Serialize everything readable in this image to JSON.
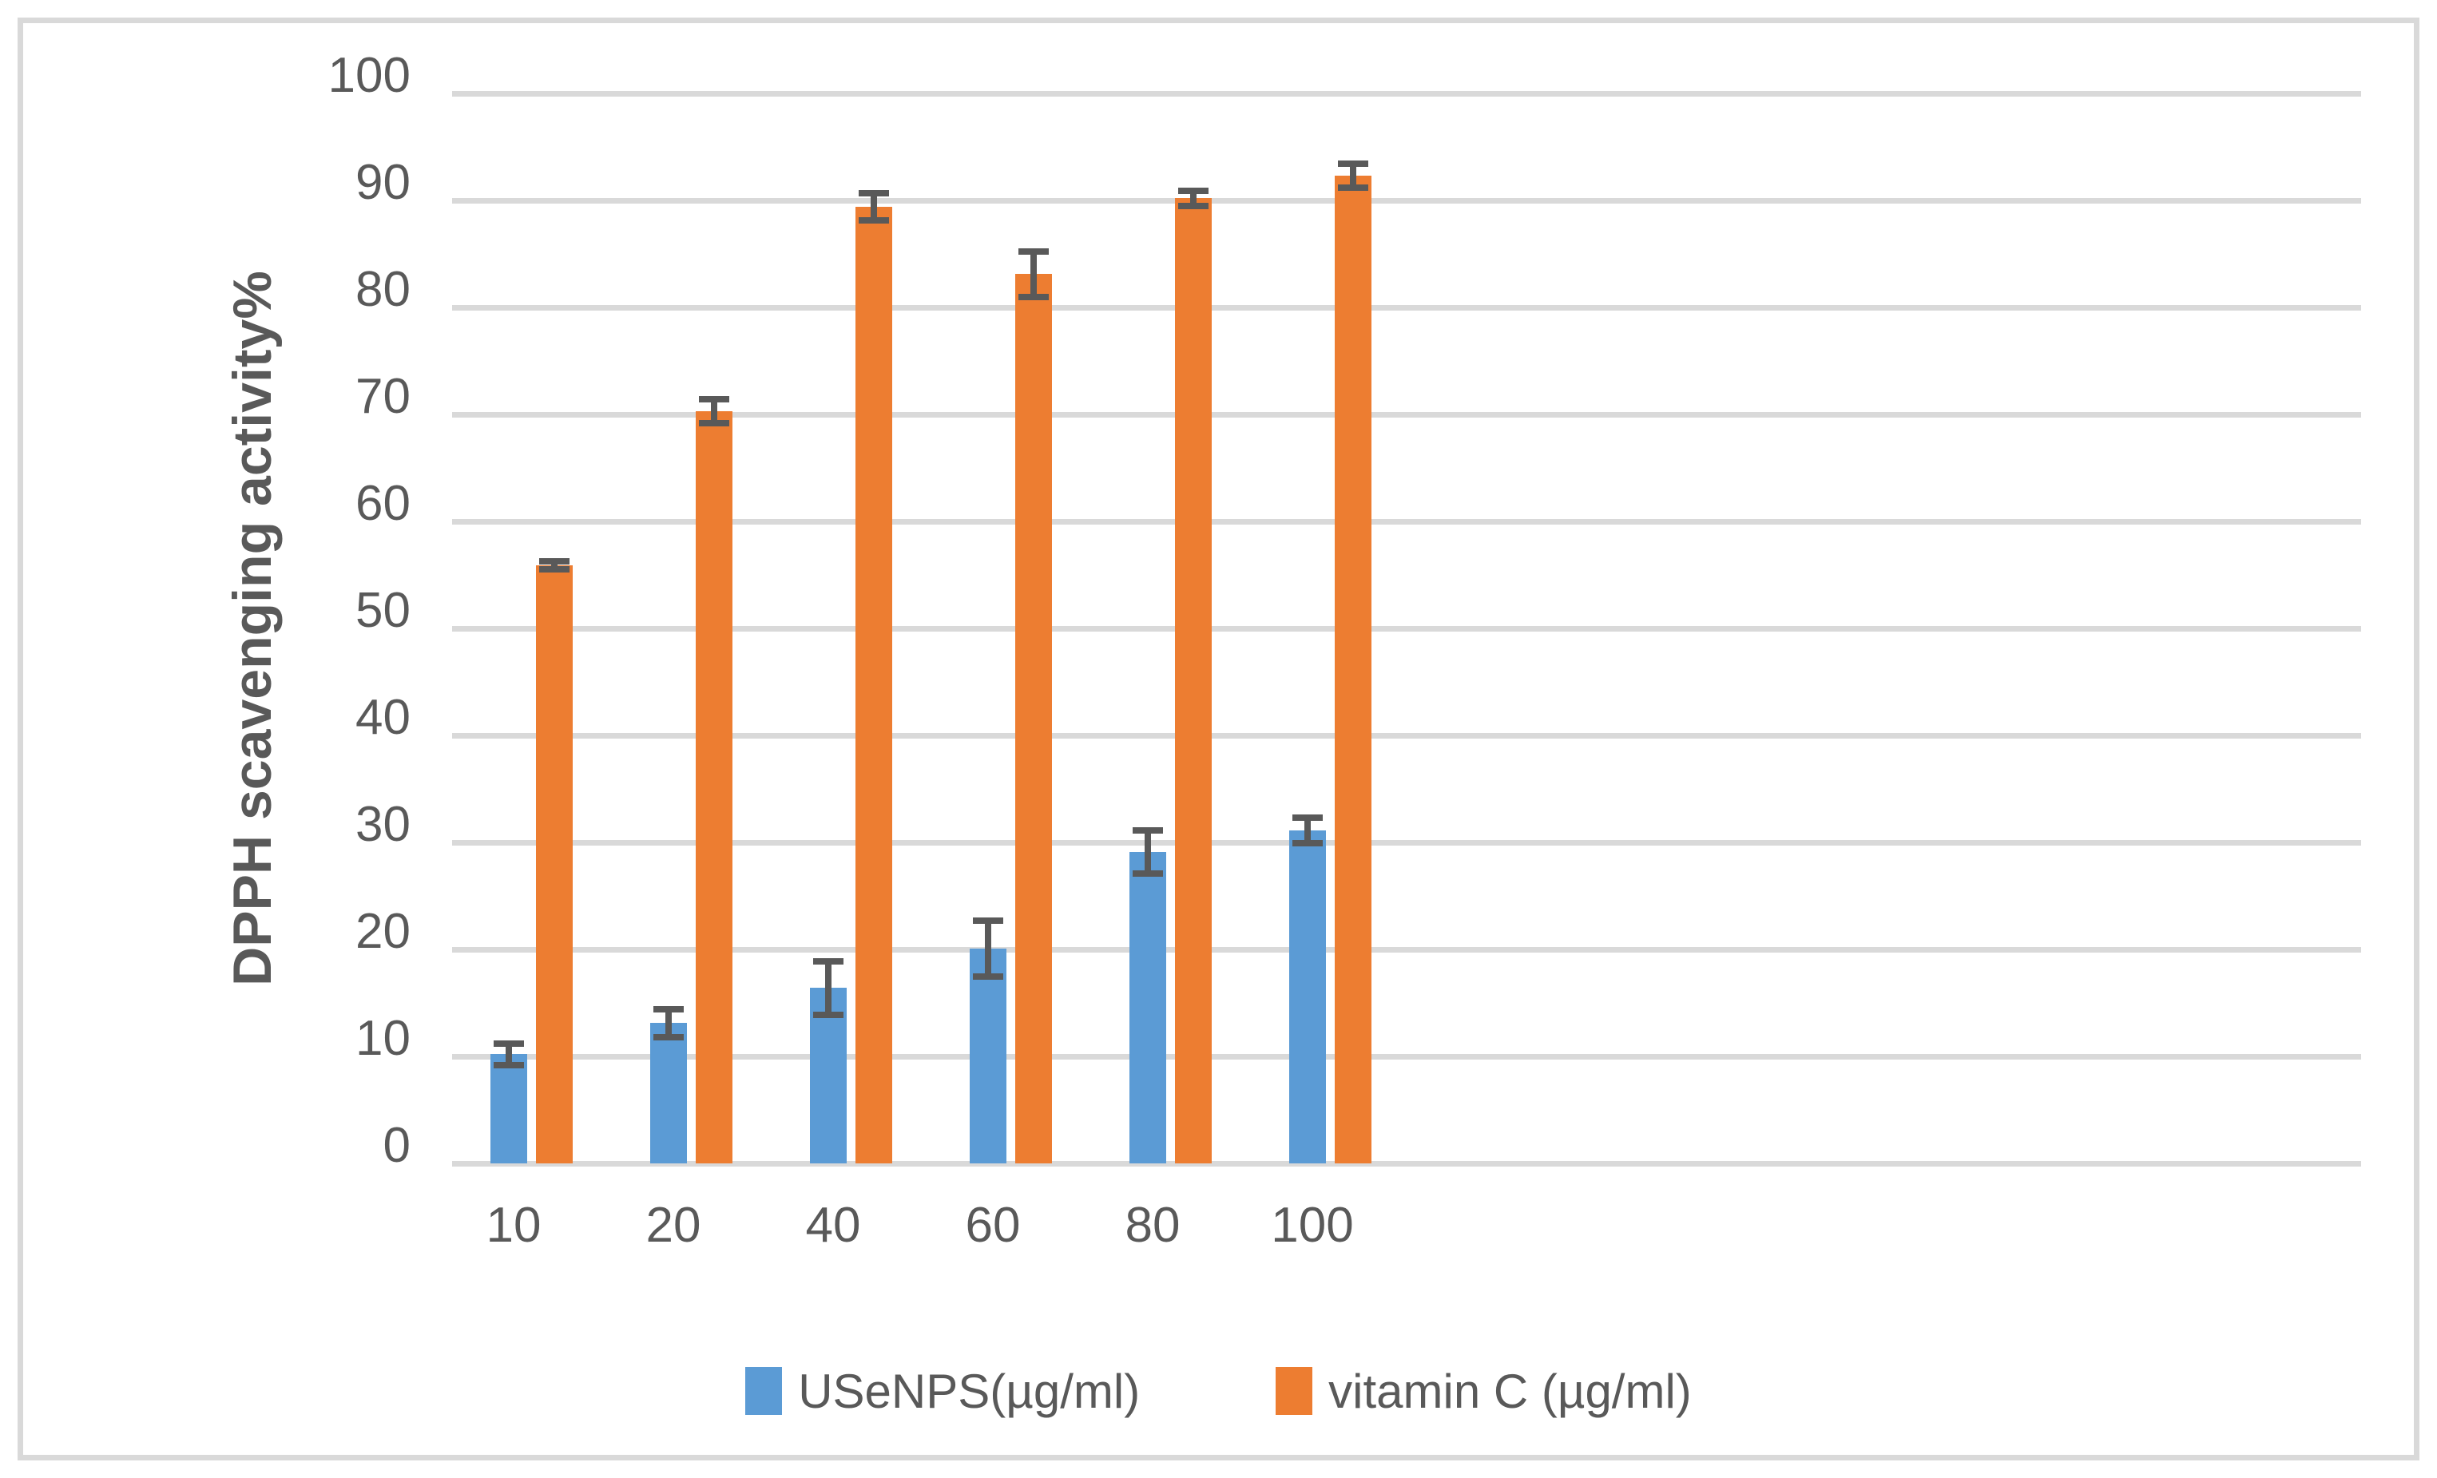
{
  "chart_data": {
    "type": "bar",
    "title": "",
    "categories": [
      "10",
      "20",
      "40",
      "60",
      "80",
      "100"
    ],
    "series": [
      {
        "name": "USeNPS(µg/ml)",
        "color": "#5B9BD5",
        "values": [
          10.2,
          13.1,
          16.4,
          20.1,
          29.1,
          31.1
        ],
        "errors": [
          1.0,
          1.3,
          2.5,
          2.6,
          2.0,
          1.2
        ]
      },
      {
        "name": "vitamin C (µg/ml)",
        "color": "#ED7D31",
        "values": [
          55.9,
          70.3,
          89.4,
          83.1,
          90.2,
          92.3
        ],
        "errors": [
          0.4,
          1.1,
          1.3,
          2.1,
          0.7,
          1.1
        ]
      }
    ],
    "xlabel": "",
    "ylabel": "DPPH scavenging activity%",
    "ylim": [
      0,
      100
    ],
    "ytick_step": 10,
    "ytick_labels": [
      "0",
      "10",
      "20",
      "30",
      "40",
      "50",
      "60",
      "70",
      "80",
      "90",
      "100"
    ],
    "grid": true,
    "legend_position": "bottom",
    "error_bars": true
  },
  "colors": {
    "gridline": "#D9D9D9",
    "frame_border": "#D9D9D9",
    "error_bar": "#595959",
    "text": "#595959",
    "background": "#FFFFFF"
  }
}
